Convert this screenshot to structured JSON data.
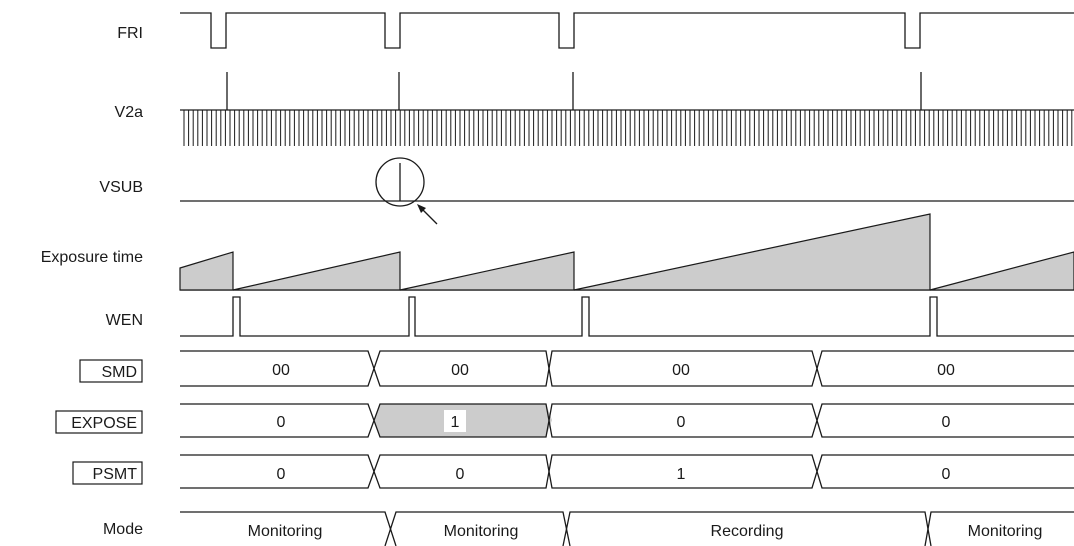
{
  "signals": {
    "fri": "FRI",
    "v2a": "V2a",
    "vsub": "VSUB",
    "exposure": "Exposure time",
    "wen": "WEN",
    "smd": "SMD",
    "expose": "EXPOSE",
    "psmt": "PSMT",
    "mode": "Mode"
  },
  "registers": {
    "smd": [
      "00",
      "00",
      "00",
      "00"
    ],
    "expose": [
      "0",
      "1",
      "0",
      "0"
    ],
    "psmt": [
      "0",
      "0",
      "1",
      "0"
    ]
  },
  "modes": [
    "Monitoring",
    "Monitoring",
    "Recording",
    "Monitoring"
  ],
  "colors": {
    "line": "#1a1a1a",
    "shade": "#cccccc",
    "background": "#ffffff"
  }
}
